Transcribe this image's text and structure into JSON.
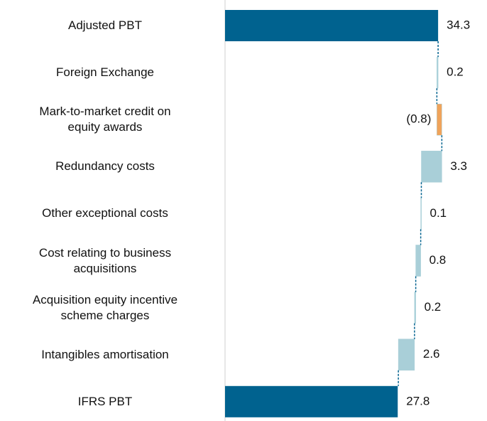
{
  "chart_data": {
    "type": "waterfall",
    "orientation": "horizontal",
    "categories": [
      "Adjusted PBT",
      "Foreign Exchange",
      "Mark-to-market credit on\nequity awards",
      "Redundancy costs",
      "Other exceptional costs",
      "Cost relating to business\nacquisitions",
      "Acquisition equity incentive\nscheme charges",
      "Intangibles amortisation",
      "IFRS PBT"
    ],
    "values": [
      34.3,
      0.2,
      -0.8,
      3.3,
      0.1,
      0.8,
      0.2,
      2.6,
      27.8
    ],
    "value_labels": [
      "34.3",
      "0.2",
      "(0.8)",
      "3.3",
      "0.1",
      "0.8",
      "0.2",
      "2.6",
      "27.8"
    ],
    "colors": [
      "#00628f",
      "#a9cfd8",
      "#f0a35a"
    ],
    "xlim": [
      0,
      40
    ]
  }
}
